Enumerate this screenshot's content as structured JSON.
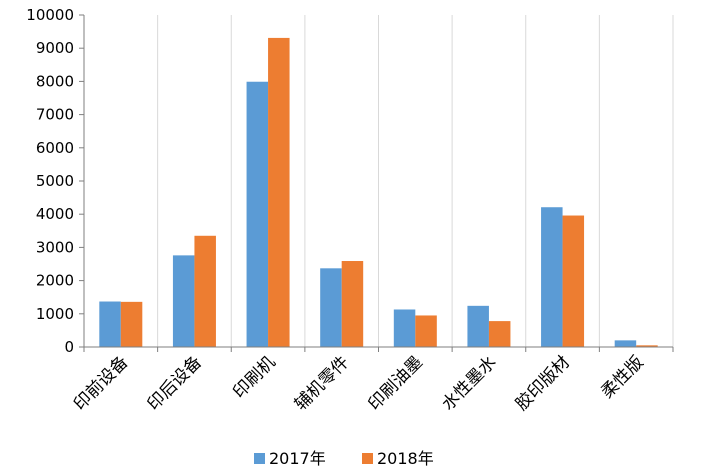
{
  "chart_data": {
    "type": "bar",
    "categories": [
      "印前设备",
      "印后设备",
      "印刷机",
      "辅机零件",
      "印刷油墨",
      "水性墨水",
      "胶印版材",
      "柔性版"
    ],
    "series": [
      {
        "name": "2017年",
        "color": "#5B9BD5",
        "values": [
          1370,
          2760,
          7990,
          2370,
          1130,
          1240,
          4210,
          200
        ]
      },
      {
        "name": "2018年",
        "color": "#ED7D31",
        "values": [
          1360,
          3350,
          9310,
          2590,
          950,
          780,
          3960,
          50
        ]
      }
    ],
    "yticks": [
      0,
      1000,
      2000,
      3000,
      4000,
      5000,
      6000,
      7000,
      8000,
      9000,
      10000
    ],
    "ylim": [
      0,
      10000
    ],
    "grid": "vertical category separators",
    "legend_position": "bottom"
  }
}
